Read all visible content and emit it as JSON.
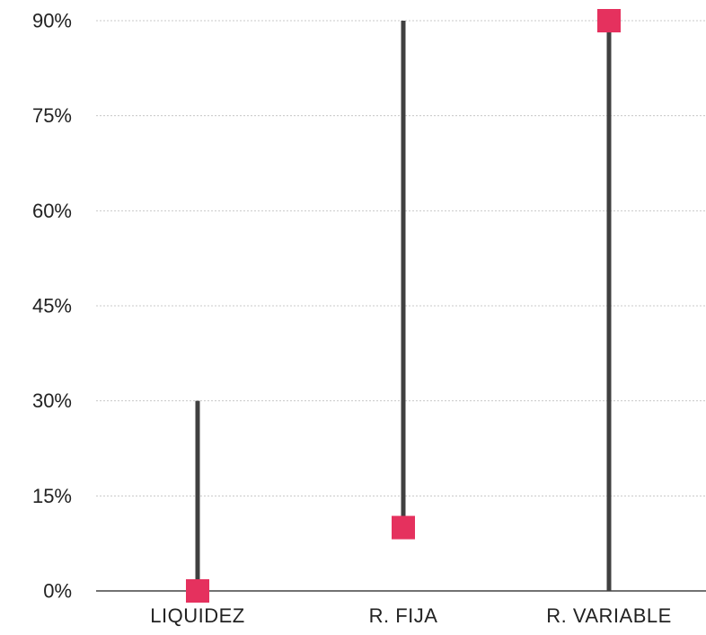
{
  "chart_data": {
    "type": "range-dot",
    "categories": [
      "LIQUIDEZ",
      "R. FIJA",
      "R. VARIABLE"
    ],
    "ranges": [
      {
        "category": "LIQUIDEZ",
        "low": 0,
        "high": 30
      },
      {
        "category": "R. FIJA",
        "low": 10,
        "high": 90
      },
      {
        "category": "R. VARIABLE",
        "low": 0,
        "high": 90
      }
    ],
    "markers": [
      0,
      10,
      90
    ],
    "y_ticks": [
      0,
      15,
      30,
      45,
      60,
      75,
      90
    ],
    "y_tick_labels": [
      "0%",
      "15%",
      "30%",
      "45%",
      "60%",
      "75%",
      "90%"
    ],
    "ylim": [
      0,
      90
    ],
    "grid": true,
    "legend": "none",
    "colors": {
      "bar": "#404040",
      "marker": "#e5315e",
      "grid": "#c8c8c8",
      "text": "#222222"
    }
  }
}
